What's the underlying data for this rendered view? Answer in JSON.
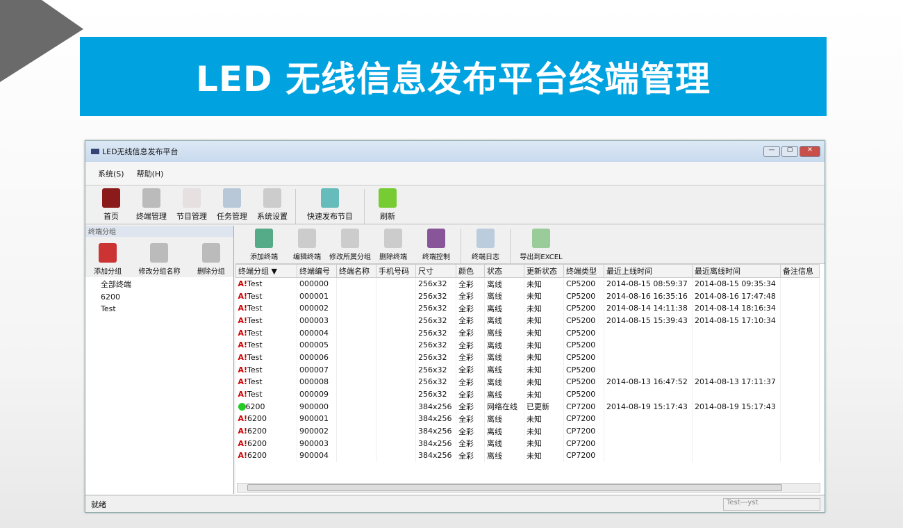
{
  "banner": {
    "title": "LED 无线信息发布平台终端管理"
  },
  "window": {
    "title": "LED无线信息发布平台",
    "controls": [
      "—",
      "▢",
      "✕"
    ]
  },
  "menu": [
    "系统(S)",
    "帮助(H)"
  ],
  "toolbar": [
    {
      "label": "首页",
      "icon": "home-icon",
      "color": "#8b1a1a"
    },
    {
      "label": "终端管理",
      "icon": "terminal-icon",
      "color": "#bbb"
    },
    {
      "label": "节目管理",
      "icon": "program-icon",
      "color": "#e6e0e0"
    },
    {
      "label": "任务管理",
      "icon": "task-icon",
      "color": "#b8c8d8"
    },
    {
      "label": "系统设置",
      "icon": "gear-icon",
      "color": "#ccc"
    },
    {
      "label": "快速发布节目",
      "icon": "quick-publish-icon",
      "color": "#6bb"
    },
    {
      "label": "刷新",
      "icon": "refresh-icon",
      "color": "#7c3"
    }
  ],
  "left": {
    "header": "终端分组",
    "tools": [
      {
        "label": "添加分组",
        "icon": "add-group-icon"
      },
      {
        "label": "修改分组名称",
        "icon": "rename-group-icon"
      },
      {
        "label": "删除分组",
        "icon": "delete-group-icon"
      }
    ],
    "tree": [
      "全部终端",
      "6200",
      "Test"
    ]
  },
  "right_tools": [
    {
      "label": "添加终端",
      "icon": "add-terminal-icon"
    },
    {
      "label": "编辑终端",
      "icon": "edit-terminal-icon"
    },
    {
      "label": "修改所属分组",
      "icon": "move-group-icon"
    },
    {
      "label": "删除终端",
      "icon": "delete-terminal-icon"
    },
    {
      "label": "终端控制",
      "icon": "control-icon"
    },
    {
      "label": "终端日志",
      "icon": "log-icon"
    },
    {
      "label": "导出到EXCEL",
      "icon": "excel-icon"
    }
  ],
  "table": {
    "columns": [
      "终端分组 ▼",
      "终端编号",
      "终端名称",
      "手机号码",
      "尺寸",
      "颜色",
      "状态",
      "更新状态",
      "终端类型",
      "最近上线时间",
      "最近离线时间",
      "备注信息"
    ],
    "rows": [
      [
        "warn",
        "Test",
        "000000",
        "",
        "",
        "256x32",
        "全彩",
        "离线",
        "未知",
        "CP5200",
        "2014-08-15 08:59:37",
        "2014-08-15 09:35:34"
      ],
      [
        "warn",
        "Test",
        "000001",
        "",
        "",
        "256x32",
        "全彩",
        "离线",
        "未知",
        "CP5200",
        "2014-08-16 16:35:16",
        "2014-08-16 17:47:48"
      ],
      [
        "warn",
        "Test",
        "000002",
        "",
        "",
        "256x32",
        "全彩",
        "离线",
        "未知",
        "CP5200",
        "2014-08-14 14:11:38",
        "2014-08-14 18:16:34"
      ],
      [
        "warn",
        "Test",
        "000003",
        "",
        "",
        "256x32",
        "全彩",
        "离线",
        "未知",
        "CP5200",
        "2014-08-15 15:39:43",
        "2014-08-15 17:10:34"
      ],
      [
        "warn",
        "Test",
        "000004",
        "",
        "",
        "256x32",
        "全彩",
        "离线",
        "未知",
        "CP5200",
        "",
        ""
      ],
      [
        "warn",
        "Test",
        "000005",
        "",
        "",
        "256x32",
        "全彩",
        "离线",
        "未知",
        "CP5200",
        "",
        ""
      ],
      [
        "warn",
        "Test",
        "000006",
        "",
        "",
        "256x32",
        "全彩",
        "离线",
        "未知",
        "CP5200",
        "",
        ""
      ],
      [
        "warn",
        "Test",
        "000007",
        "",
        "",
        "256x32",
        "全彩",
        "离线",
        "未知",
        "CP5200",
        "",
        ""
      ],
      [
        "warn",
        "Test",
        "000008",
        "",
        "",
        "256x32",
        "全彩",
        "离线",
        "未知",
        "CP5200",
        "2014-08-13 16:47:52",
        "2014-08-13 17:11:37"
      ],
      [
        "warn",
        "Test",
        "000009",
        "",
        "",
        "256x32",
        "全彩",
        "离线",
        "未知",
        "CP5200",
        "",
        ""
      ],
      [
        "ok",
        "6200",
        "900000",
        "",
        "",
        "384x256",
        "全彩",
        "网络在线",
        "已更新",
        "CP7200",
        "2014-08-19 15:17:43",
        "2014-08-19 15:17:43"
      ],
      [
        "warn",
        "6200",
        "900001",
        "",
        "",
        "384x256",
        "全彩",
        "离线",
        "未知",
        "CP7200",
        "",
        ""
      ],
      [
        "warn",
        "6200",
        "900002",
        "",
        "",
        "384x256",
        "全彩",
        "离线",
        "未知",
        "CP7200",
        "",
        ""
      ],
      [
        "warn",
        "6200",
        "900003",
        "",
        "",
        "384x256",
        "全彩",
        "离线",
        "未知",
        "CP7200",
        "",
        ""
      ],
      [
        "warn",
        "6200",
        "900004",
        "",
        "",
        "384x256",
        "全彩",
        "离线",
        "未知",
        "CP7200",
        "",
        ""
      ]
    ]
  },
  "status": {
    "left": "就绪",
    "right": "Test---yst"
  }
}
